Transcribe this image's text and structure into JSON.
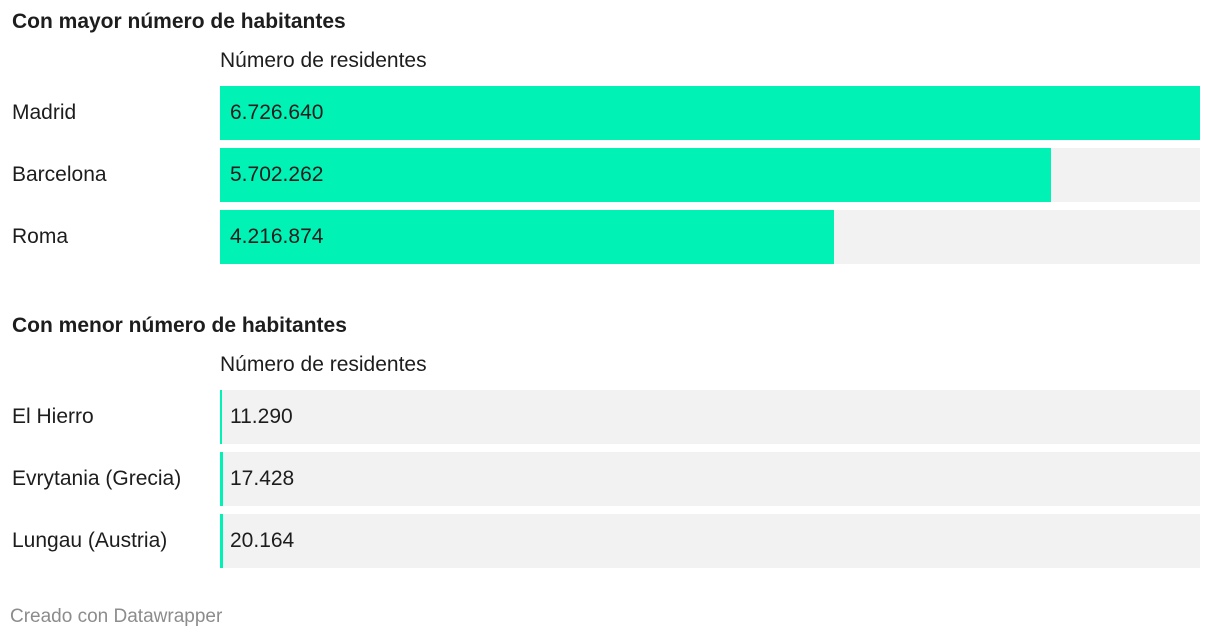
{
  "chart_data": [
    {
      "type": "bar",
      "orientation": "horizontal",
      "title": "Con mayor número de habitantes",
      "column_header": "Número de residentes",
      "categories": [
        "Madrid",
        "Barcelona",
        "Roma"
      ],
      "values": [
        6726640,
        5702262,
        4216874
      ],
      "value_labels": [
        "6.726.640",
        "5.702.262",
        "4.216.874"
      ],
      "xlim": [
        0,
        6726640
      ]
    },
    {
      "type": "bar",
      "orientation": "horizontal",
      "title": "Con menor número de habitantes",
      "column_header": "Número de residentes",
      "categories": [
        "El Hierro",
        "Evrytania (Grecia)",
        "Lungau (Austria)"
      ],
      "values": [
        11290,
        17428,
        20164
      ],
      "value_labels": [
        "11.290",
        "17.428",
        "20.164"
      ],
      "xlim": [
        0,
        6726640
      ]
    }
  ],
  "colors": {
    "bar": "#00f2b5",
    "track": "#f2f2f2"
  },
  "footer": "Creado con Datawrapper"
}
